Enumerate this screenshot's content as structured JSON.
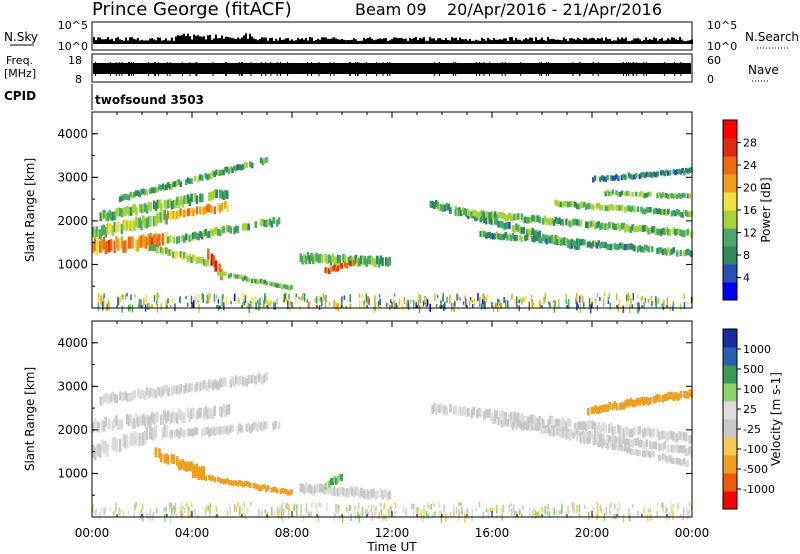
{
  "header": {
    "station": "Prince George (fitACF)",
    "beam": "Beam 09",
    "date_range": "20/Apr/2016 - 21/Apr/2016"
  },
  "nsky_panel": {
    "left_label": "N.Sky",
    "right_label": "N.Search",
    "left_ticks": [
      "10^5",
      "10^0"
    ],
    "right_ticks": [
      "10^5",
      "10^0"
    ]
  },
  "freq_panel": {
    "left_label_line1": "Freq.",
    "left_label_line2": "[MHz]",
    "right_label": "Nave",
    "left_ticks": [
      "18",
      "8"
    ],
    "right_ticks": [
      "60",
      "0"
    ]
  },
  "cpid": {
    "label": "CPID",
    "program": "twofsound 3503"
  },
  "colors": {
    "power": [
      "#0000ff",
      "#2a4fb8",
      "#2e8a5c",
      "#4aa86a",
      "#a6d23c",
      "#f0e040",
      "#f0a018",
      "#ee6a10",
      "#e02a10",
      "#ff0000"
    ],
    "velocity": [
      "#ff0000",
      "#f05a10",
      "#f0a020",
      "#f8c850",
      "#c8c8c8",
      "#dcdcdc",
      "#8ed468",
      "#3a9a58",
      "#2a5fb0",
      "#1a2aa0"
    ]
  },
  "chart_data": [
    {
      "type": "heatmap",
      "name": "power-panel",
      "ylabel": "Slant Range [km]",
      "yticks": [
        "1000",
        "2000",
        "3000",
        "4000"
      ],
      "ylim": [
        0,
        4500
      ],
      "xlim": [
        0,
        24
      ],
      "colorbar_label": "Power [dB]",
      "colorbar_ticks": [
        "4",
        "8",
        "12",
        "16",
        "20",
        "24",
        "28"
      ],
      "bands": [
        {
          "x": [
            1.0,
            7.0
          ],
          "y0": [
            2500,
            3400
          ],
          "width": 130,
          "value": 10
        },
        {
          "x": [
            0.3,
            5.5
          ],
          "y0": [
            2100,
            2650
          ],
          "width": 200,
          "value": 12
        },
        {
          "x": [
            0.0,
            3.0
          ],
          "y0": [
            1700,
            2100
          ],
          "width": 240,
          "value": 14
        },
        {
          "x": [
            3.0,
            5.5
          ],
          "y0": [
            2100,
            2350
          ],
          "width": 180,
          "value": 20
        },
        {
          "x": [
            0.0,
            3.0
          ],
          "y0": [
            1400,
            1550
          ],
          "width": 280,
          "value": 22
        },
        {
          "x": [
            3.0,
            7.5
          ],
          "y0": [
            1550,
            2000
          ],
          "width": 160,
          "value": 12
        },
        {
          "x": [
            2.2,
            4.8
          ],
          "y0": [
            1400,
            1000
          ],
          "width": 150,
          "value": 14
        },
        {
          "x": [
            4.6,
            5.2
          ],
          "y0": [
            1250,
            750
          ],
          "width": 260,
          "value": 27
        },
        {
          "x": [
            5.0,
            8.0
          ],
          "y0": [
            800,
            450
          ],
          "width": 100,
          "value": 12
        },
        {
          "x": [
            8.3,
            12.0
          ],
          "y0": [
            1150,
            1050
          ],
          "width": 200,
          "value": 12
        },
        {
          "x": [
            9.3,
            10.5
          ],
          "y0": [
            850,
            1050
          ],
          "width": 130,
          "value": 24
        },
        {
          "x": [
            13.5,
            19.5
          ],
          "y0": [
            2400,
            1400
          ],
          "width": 160,
          "value": 10
        },
        {
          "x": [
            14.5,
            24.0
          ],
          "y0": [
            2200,
            1700
          ],
          "width": 150,
          "value": 12
        },
        {
          "x": [
            15.5,
            24.0
          ],
          "y0": [
            1700,
            1250
          ],
          "width": 140,
          "value": 10
        },
        {
          "x": [
            18.5,
            24.0
          ],
          "y0": [
            2400,
            2150
          ],
          "width": 130,
          "value": 12
        },
        {
          "x": [
            20.0,
            24.0
          ],
          "y0": [
            2950,
            3150
          ],
          "width": 120,
          "value": 8
        },
        {
          "x": [
            20.5,
            24.0
          ],
          "y0": [
            2650,
            2550
          ],
          "width": 110,
          "value": 12
        }
      ]
    },
    {
      "type": "heatmap",
      "name": "velocity-panel",
      "ylabel": "Slant Range [km]",
      "yticks": [
        "1000",
        "2000",
        "3000",
        "4000"
      ],
      "ylim": [
        0,
        4500
      ],
      "xlim": [
        0,
        24
      ],
      "xlabel": "Time UT",
      "xticks": [
        "00:00",
        "04:00",
        "08:00",
        "12:00",
        "16:00",
        "20:00",
        "00:00"
      ],
      "colorbar_label": "Velocity [m s-1]",
      "colorbar_ticks": [
        "1000",
        "500",
        "100",
        "25",
        "-25",
        "-100",
        "-500",
        "-1000"
      ],
      "bands": [
        {
          "x": [
            0.3,
            7.0
          ],
          "y0": [
            2700,
            3200
          ],
          "width": 200,
          "value": 0
        },
        {
          "x": [
            0.0,
            5.5
          ],
          "y0": [
            2100,
            2450
          ],
          "width": 240,
          "value": 0
        },
        {
          "x": [
            0.0,
            3.0
          ],
          "y0": [
            1500,
            2000
          ],
          "width": 300,
          "value": 0
        },
        {
          "x": [
            3.0,
            7.5
          ],
          "y0": [
            1900,
            2100
          ],
          "width": 180,
          "value": 0
        },
        {
          "x": [
            2.5,
            4.5
          ],
          "y0": [
            1450,
            1000
          ],
          "width": 220,
          "value": -350
        },
        {
          "x": [
            4.0,
            8.0
          ],
          "y0": [
            950,
            550
          ],
          "width": 120,
          "value": -200
        },
        {
          "x": [
            8.3,
            12.0
          ],
          "y0": [
            650,
            500
          ],
          "width": 200,
          "value": 0
        },
        {
          "x": [
            9.3,
            10.0
          ],
          "y0": [
            700,
            950
          ],
          "width": 160,
          "value": 60
        },
        {
          "x": [
            13.5,
            24.0
          ],
          "y0": [
            2500,
            1800
          ],
          "width": 200,
          "value": 0
        },
        {
          "x": [
            16.0,
            24.0
          ],
          "y0": [
            2200,
            1500
          ],
          "width": 180,
          "value": 0
        },
        {
          "x": [
            18.0,
            24.0
          ],
          "y0": [
            2000,
            1200
          ],
          "width": 150,
          "value": 0
        },
        {
          "x": [
            19.8,
            24.0
          ],
          "y0": [
            2450,
            2850
          ],
          "width": 170,
          "value": -300
        }
      ]
    }
  ]
}
